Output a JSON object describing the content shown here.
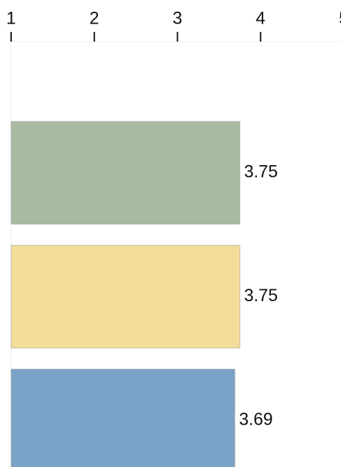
{
  "chart_data": {
    "type": "bar",
    "orientation": "horizontal",
    "categories": [
      null,
      null,
      null
    ],
    "series": [
      {
        "values": [
          3.75,
          3.75,
          3.69
        ],
        "colors": [
          "#a8bba1",
          "#f3dd99",
          "#7ba2c7"
        ]
      }
    ],
    "xlim": [
      1,
      5
    ],
    "xticks": [
      1,
      2,
      3,
      4,
      5
    ]
  }
}
